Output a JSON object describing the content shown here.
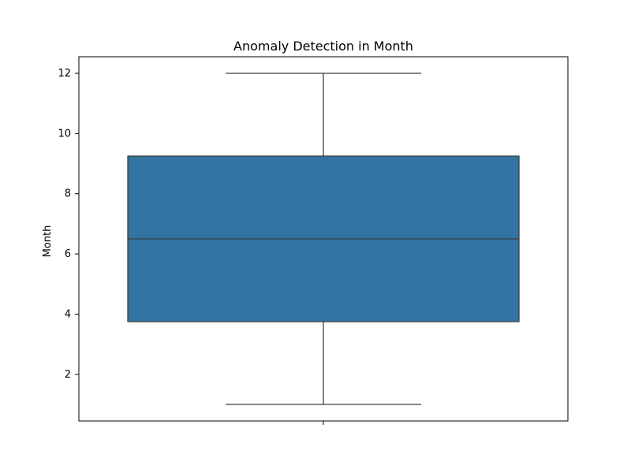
{
  "chart_data": {
    "type": "box",
    "title": "Anomaly Detection in Month",
    "xlabel": "",
    "ylabel": "Month",
    "ylim": [
      0.45,
      12.55
    ],
    "yticks": [
      2,
      4,
      6,
      8,
      10,
      12
    ],
    "grid": false,
    "box": {
      "whisker_low": 1,
      "q1": 3.75,
      "median": 6.5,
      "q3": 9.25,
      "whisker_high": 12
    },
    "box_color": "#3274a1",
    "line_color": "#3f3f3f"
  }
}
